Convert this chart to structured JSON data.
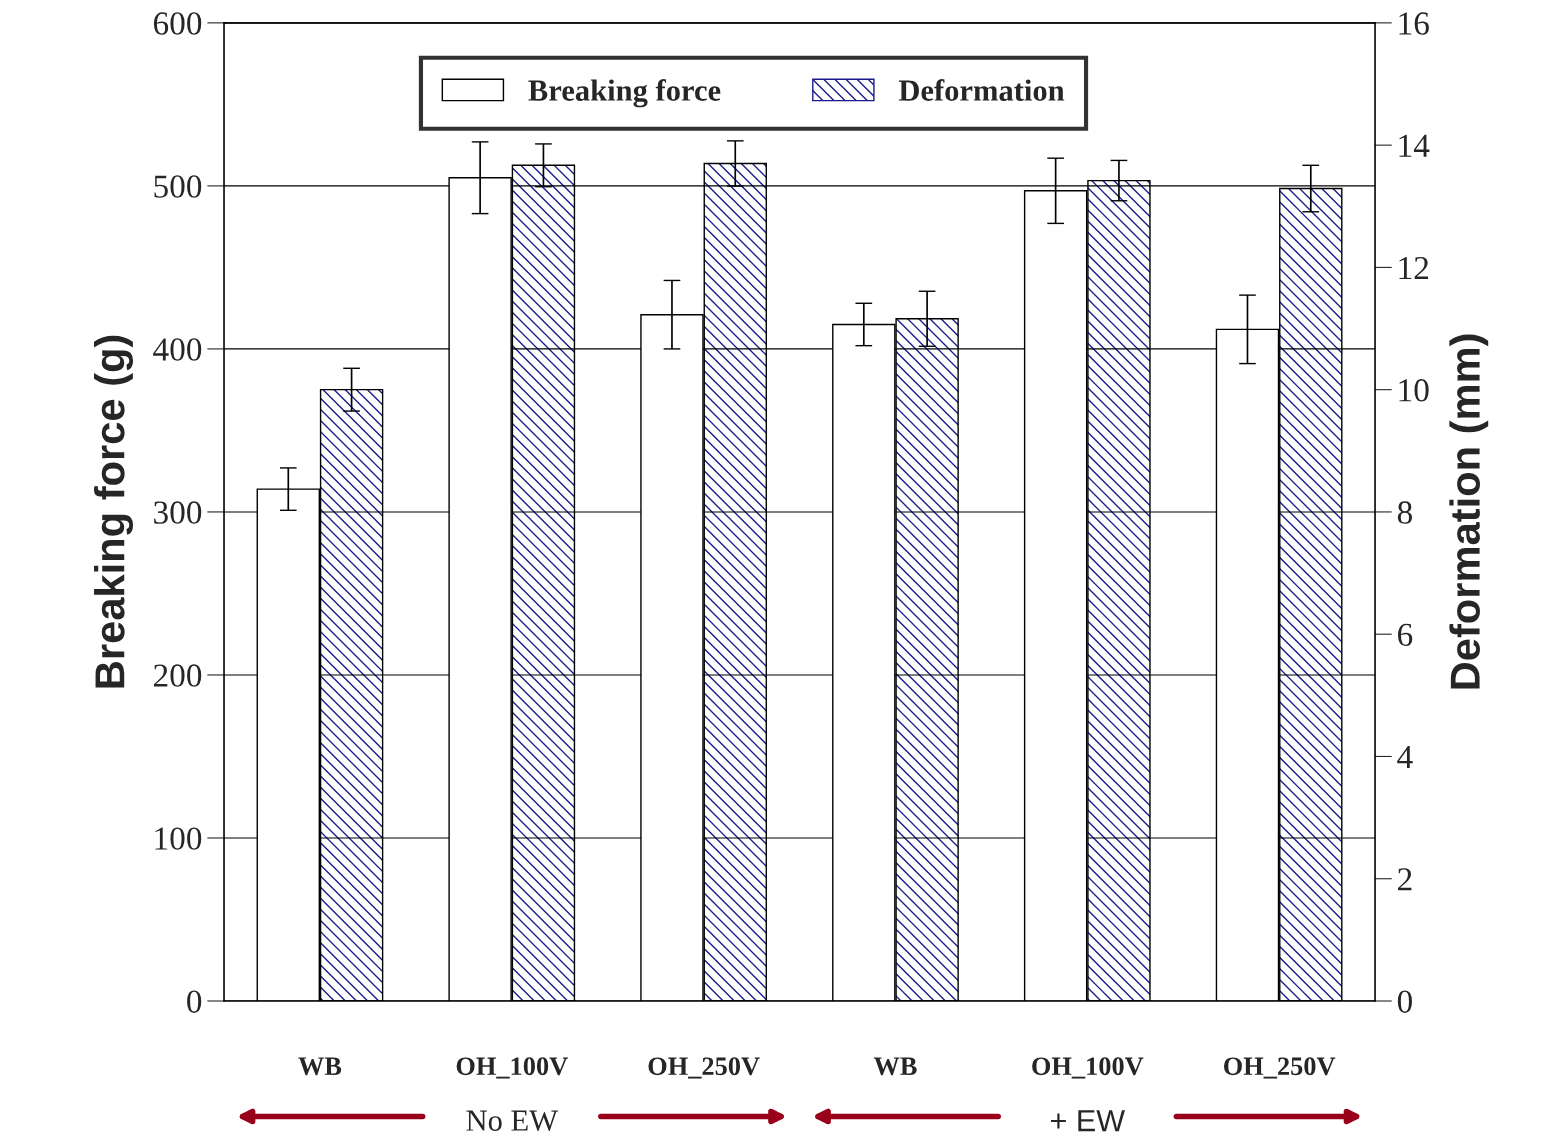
{
  "chart_data": {
    "type": "bar",
    "ylabel": "Breaking force (g)",
    "y2label": "Deformation (mm)",
    "categories": [
      "WB",
      "OH_100V",
      "OH_250V",
      "WB",
      "OH_100V",
      "OH_250V"
    ],
    "series": [
      {
        "name": "Breaking force",
        "color": "#ffffff",
        "values": [
          314,
          505,
          421,
          415,
          497,
          412
        ],
        "errors": [
          13,
          22,
          21,
          13,
          20,
          21
        ]
      },
      {
        "name": "Deformation",
        "color": "#1a1a8c",
        "axis": "y2",
        "values": [
          10.0,
          13.67,
          13.7,
          11.16,
          13.42,
          13.29
        ],
        "errors": [
          0.35,
          0.35,
          0.37,
          0.45,
          0.33,
          0.38
        ]
      }
    ],
    "ylim": [
      0,
      600
    ],
    "yticks": [
      0,
      100,
      200,
      300,
      400,
      500,
      600
    ],
    "y2lim": [
      0,
      16
    ],
    "y2ticks": [
      0,
      2,
      4,
      6,
      8,
      10,
      12,
      14,
      16
    ],
    "grid": "y",
    "legend": "top",
    "annotations": [
      "No EW",
      "+ EW"
    ]
  }
}
